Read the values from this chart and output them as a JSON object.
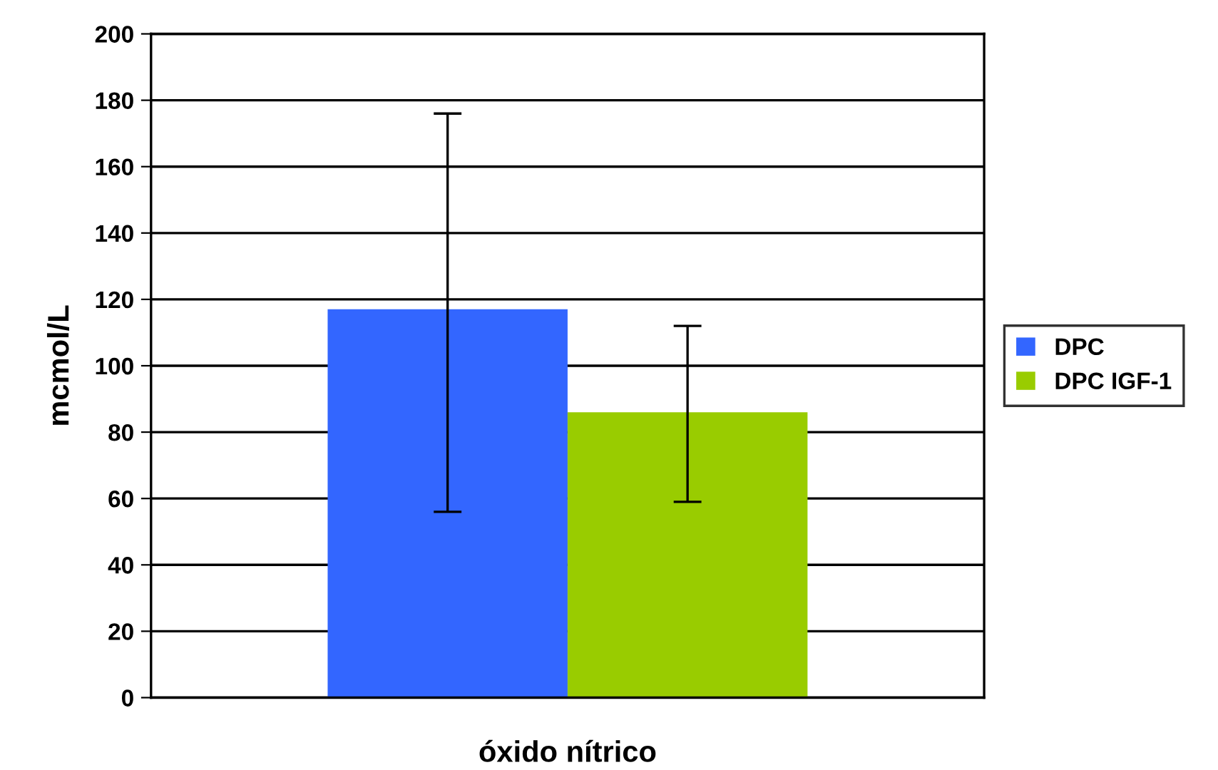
{
  "chart_data": {
    "type": "bar",
    "categories": [
      null
    ],
    "xlabel": "óxido nítrico",
    "ylabel": "mcmol/L",
    "series": [
      {
        "name": "DPC",
        "color": "#3366ff",
        "values": [
          117
        ],
        "errors": [
          [
            56,
            176
          ]
        ]
      },
      {
        "name": "DPC IGF-1",
        "color": "#99cc00",
        "values": [
          86
        ],
        "errors": [
          [
            59,
            112
          ]
        ]
      }
    ],
    "ylim": [
      0,
      200
    ],
    "yticks": [
      0,
      20,
      40,
      60,
      80,
      100,
      120,
      140,
      160,
      180,
      200
    ],
    "grid": "y",
    "legend": "right"
  }
}
